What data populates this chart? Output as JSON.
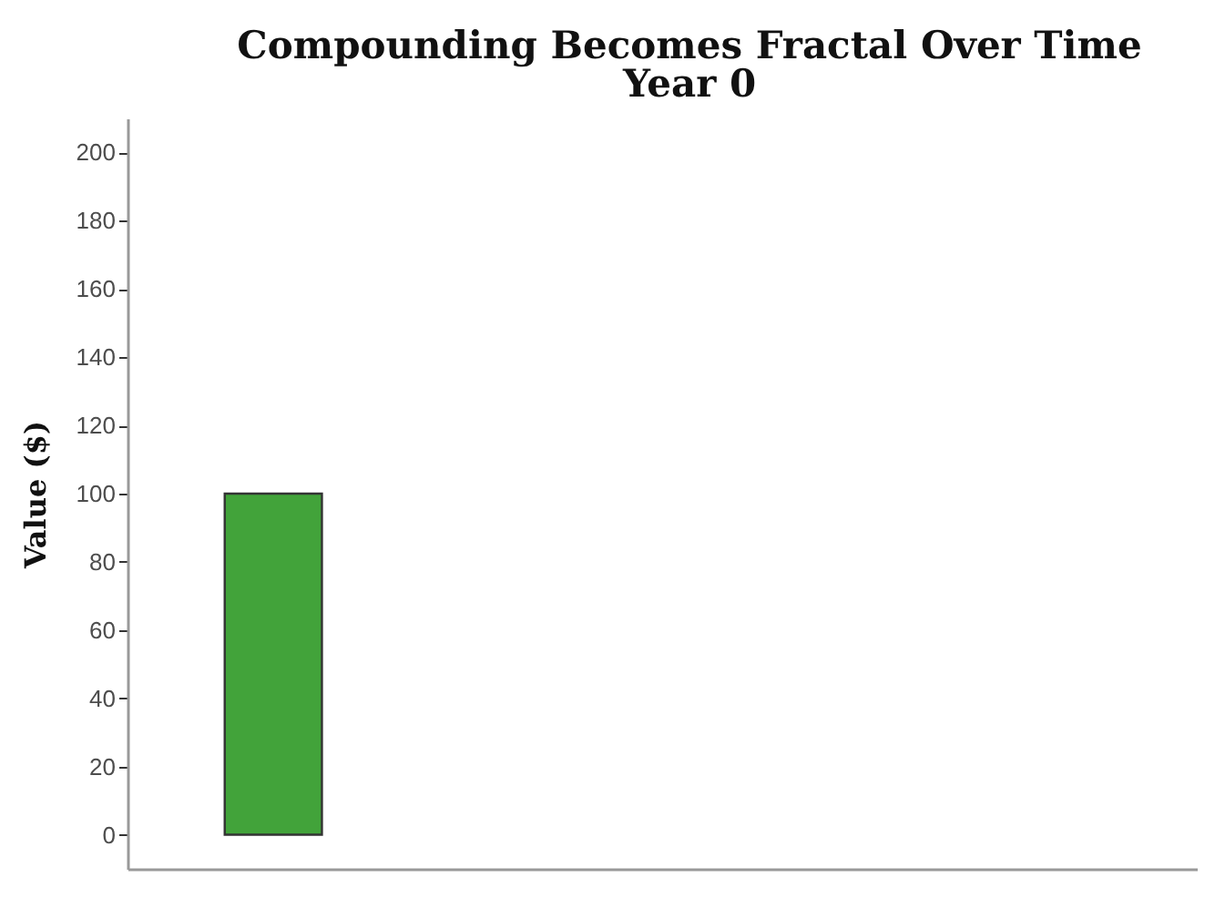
{
  "chart_data": {
    "type": "bar",
    "title": "Compounding Becomes Fractal Over Time",
    "subtitle": "Year 0",
    "ylabel": "Value ($)",
    "categories": [
      null,
      null,
      null,
      null,
      null,
      null,
      null,
      null,
      null,
      null,
      null
    ],
    "values": [
      null,
      100,
      null,
      null,
      null,
      null,
      null,
      null,
      null,
      null,
      null
    ],
    "color": "#42a33a",
    "ylim": [
      -10,
      210
    ],
    "yticks": [
      0,
      20,
      40,
      60,
      80,
      100,
      120,
      140,
      160,
      180,
      200
    ],
    "grid": false,
    "tick_labels": "y"
  }
}
